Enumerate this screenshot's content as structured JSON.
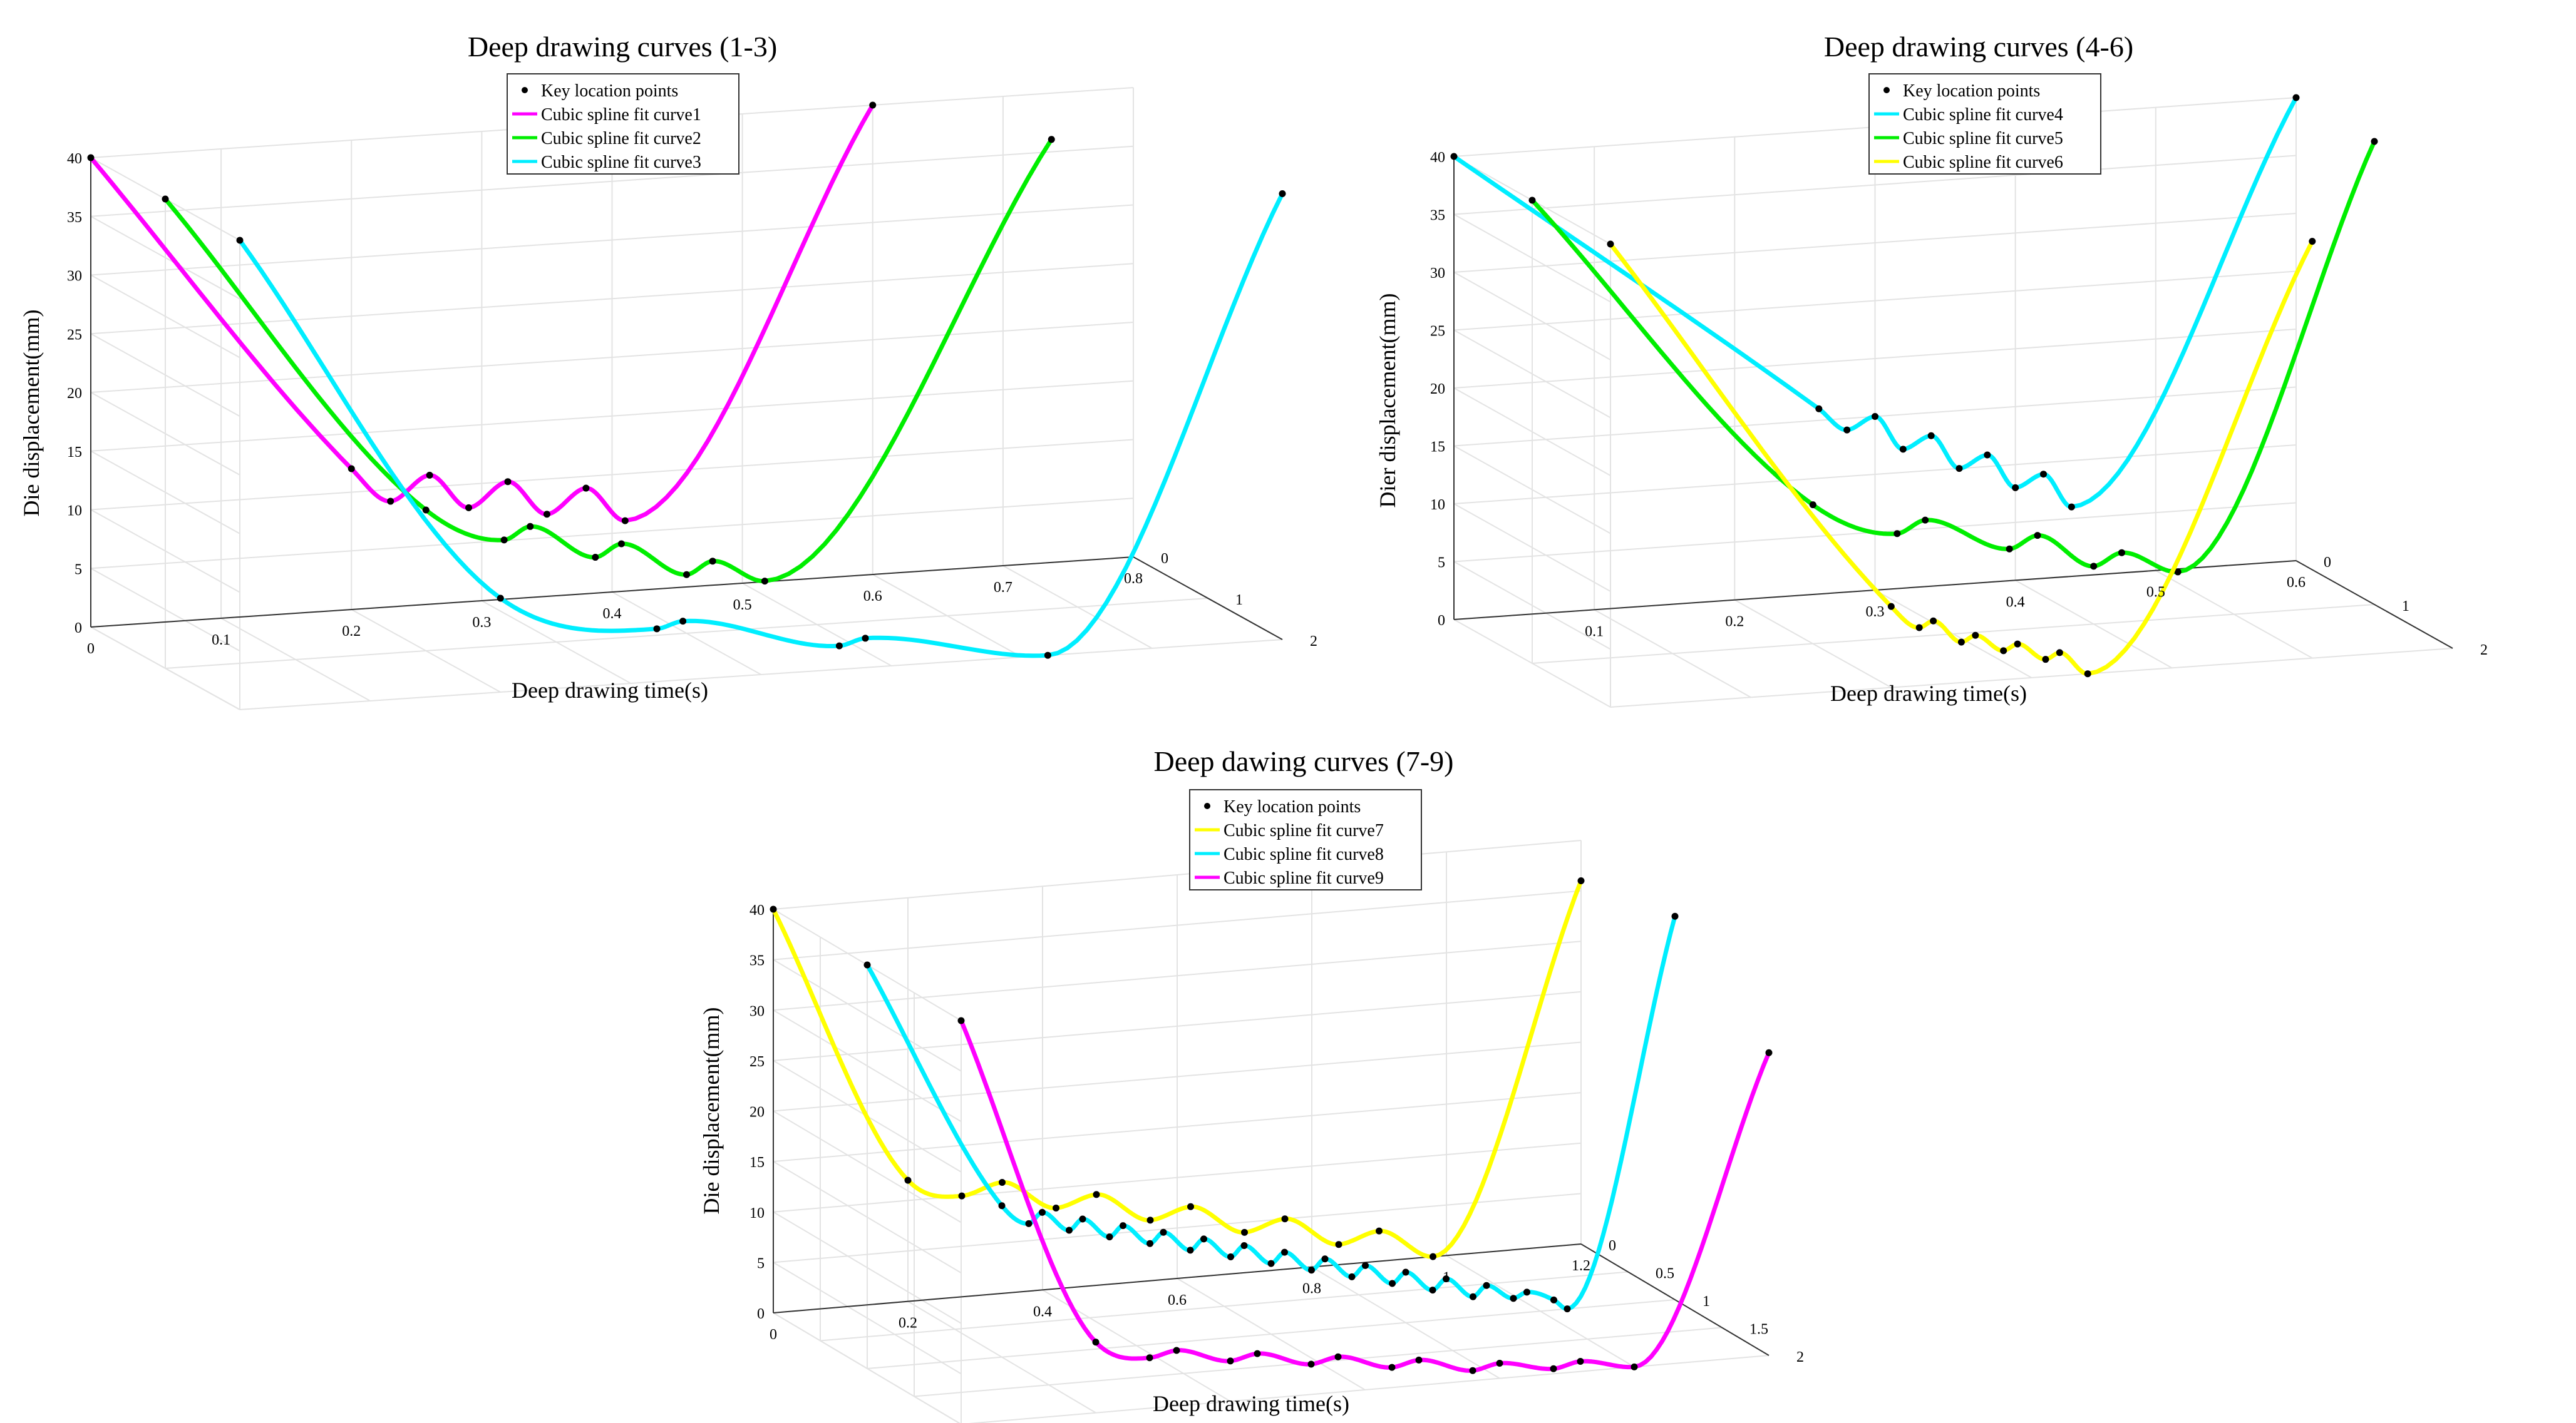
{
  "chart_data": [
    {
      "type": "line",
      "projection": "3d",
      "title": "Deep drawing curves (1-3)",
      "xlabel": "Deep drawing time(s)",
      "ylabel": "",
      "zlabel": "Die displacement(mm)",
      "xlim": [
        0,
        0.8
      ],
      "ylim": [
        0,
        2
      ],
      "zlim": [
        0,
        40
      ],
      "xticks": [
        "0",
        "0.1",
        "0.2",
        "0.3",
        "0.4",
        "0.5",
        "0.6",
        "0.7",
        "0.8"
      ],
      "yticks": [
        "0",
        "1",
        "2"
      ],
      "zticks": [
        "0",
        "5",
        "10",
        "15",
        "20",
        "25",
        "30",
        "35",
        "40"
      ],
      "legend": [
        "Key location points",
        "Cubic spline fit curve1",
        "Cubic spline fit curve2",
        "Cubic spline fit curve3"
      ],
      "series": [
        {
          "name": "Cubic spline fit curve1",
          "color": "#ff00ff",
          "y": 0,
          "x": [
            0,
            0.2,
            0.23,
            0.26,
            0.29,
            0.32,
            0.35,
            0.38,
            0.41,
            0.6
          ],
          "z": [
            40,
            12,
            9,
            11,
            8,
            10,
            7,
            9,
            6,
            40
          ]
        },
        {
          "name": "Cubic spline fit curve2",
          "color": "#00ee00",
          "y": 1,
          "x": [
            0,
            0.2,
            0.26,
            0.28,
            0.33,
            0.35,
            0.4,
            0.42,
            0.46,
            0.68
          ],
          "z": [
            40,
            12,
            9,
            10,
            7,
            8,
            5,
            6,
            4,
            40
          ]
        },
        {
          "name": "Cubic spline fit curve3",
          "color": "#00eeff",
          "y": 2,
          "x": [
            0,
            0.2,
            0.32,
            0.34,
            0.46,
            0.48,
            0.62,
            0.8
          ],
          "z": [
            40,
            8,
            4.5,
            5,
            2,
            2.5,
            0,
            38
          ]
        }
      ]
    },
    {
      "type": "line",
      "projection": "3d",
      "title": "Deep drawing curves (4-6)",
      "xlabel": "Deep drawing time(s)",
      "ylabel": "",
      "zlabel": "Dier displacement(mm)",
      "xlim": [
        0,
        0.6
      ],
      "ylim": [
        0,
        2
      ],
      "zlim": [
        0,
        40
      ],
      "xticks": [
        "0.1",
        "0.2",
        "0.3",
        "0.4",
        "0.5",
        "0.6"
      ],
      "yticks": [
        "0",
        "1",
        "2"
      ],
      "zticks": [
        "0",
        "5",
        "10",
        "15",
        "20",
        "25",
        "30",
        "35",
        "40"
      ],
      "legend": [
        "Key location points",
        "Cubic spline fit curve4",
        "Cubic spline fit curve5",
        "Cubic spline fit curve6"
      ],
      "series": [
        {
          "name": "Cubic spline fit curve4",
          "color": "#00eeff",
          "y": 0,
          "x": [
            0,
            0.26,
            0.28,
            0.3,
            0.32,
            0.34,
            0.36,
            0.38,
            0.4,
            0.42,
            0.44,
            0.6
          ],
          "z": [
            40,
            16,
            14,
            15,
            12,
            13,
            10,
            11,
            8,
            9,
            6,
            40
          ]
        },
        {
          "name": "Cubic spline fit curve5",
          "color": "#00ee00",
          "y": 1,
          "x": [
            0,
            0.2,
            0.26,
            0.28,
            0.34,
            0.36,
            0.4,
            0.42,
            0.46,
            0.6
          ],
          "z": [
            40,
            12,
            9,
            10,
            7,
            8,
            5,
            6,
            4,
            40
          ]
        },
        {
          "name": "Cubic spline fit curve6",
          "color": "#ffff00",
          "y": 2,
          "x": [
            0,
            0.2,
            0.22,
            0.23,
            0.25,
            0.26,
            0.28,
            0.29,
            0.31,
            0.32,
            0.34,
            0.5
          ],
          "z": [
            40,
            7,
            5,
            5.5,
            3.5,
            4,
            2.5,
            3,
            1.5,
            2,
            0,
            36
          ]
        }
      ]
    },
    {
      "type": "line",
      "projection": "3d",
      "title": "Deep dawing curves (7-9)",
      "xlabel": "Deep drawing time(s)",
      "ylabel": "",
      "zlabel": "Die displacement(mm)",
      "xlim": [
        0,
        1.2
      ],
      "ylim": [
        0,
        2
      ],
      "zlim": [
        0,
        40
      ],
      "xticks": [
        "0",
        "0.2",
        "0.4",
        "0.6",
        "0.8",
        "1",
        "1.2"
      ],
      "yticks": [
        "0",
        "0.5",
        "1",
        "1.5",
        "2"
      ],
      "zticks": [
        "0",
        "5",
        "10",
        "15",
        "20",
        "25",
        "30",
        "35",
        "40"
      ],
      "legend": [
        "Key location points",
        "Cubic spline fit curve7",
        "Cubic spline fit curve8",
        "Cubic spline fit curve9"
      ],
      "series": [
        {
          "name": "Cubic spline fit curve7",
          "color": "#ffff00",
          "y": 0,
          "x": [
            0,
            0.2,
            0.28,
            0.34,
            0.42,
            0.48,
            0.56,
            0.62,
            0.7,
            0.76,
            0.84,
            0.9,
            0.98,
            1.2
          ],
          "z": [
            40,
            12,
            10,
            11,
            8,
            9,
            6,
            7,
            4,
            5,
            2,
            3,
            0,
            36
          ]
        },
        {
          "name": "Cubic spline fit curve8",
          "color": "#00eeff",
          "y": 1,
          "x": [
            0,
            0.2,
            0.24,
            0.26,
            0.3,
            0.32,
            0.36,
            0.38,
            0.42,
            0.44,
            0.48,
            0.5,
            0.54,
            0.56,
            0.6,
            0.62,
            0.66,
            0.68,
            0.72,
            0.74,
            0.78,
            0.8,
            0.84,
            0.86,
            0.9,
            0.92,
            0.96,
            0.98,
            1.02,
            1.04,
            1.2
          ],
          "z": [
            40,
            15,
            13,
            14,
            12,
            13,
            11,
            12,
            10,
            11,
            9,
            10,
            8,
            9,
            7,
            8,
            6,
            7,
            5,
            6,
            4,
            5,
            3,
            4,
            2,
            3,
            1.5,
            2,
            1,
            0,
            38
          ]
        },
        {
          "name": "Cubic spline fit curve9",
          "color": "#ff00ff",
          "y": 2,
          "x": [
            0,
            0.2,
            0.28,
            0.32,
            0.4,
            0.44,
            0.52,
            0.56,
            0.64,
            0.68,
            0.76,
            0.8,
            0.88,
            0.92,
            1.0,
            1.2
          ],
          "z": [
            40,
            7,
            5,
            5.5,
            4,
            4.5,
            3,
            3.5,
            2,
            2.5,
            1,
            1.5,
            0.5,
            1,
            0,
            30
          ]
        }
      ]
    }
  ]
}
